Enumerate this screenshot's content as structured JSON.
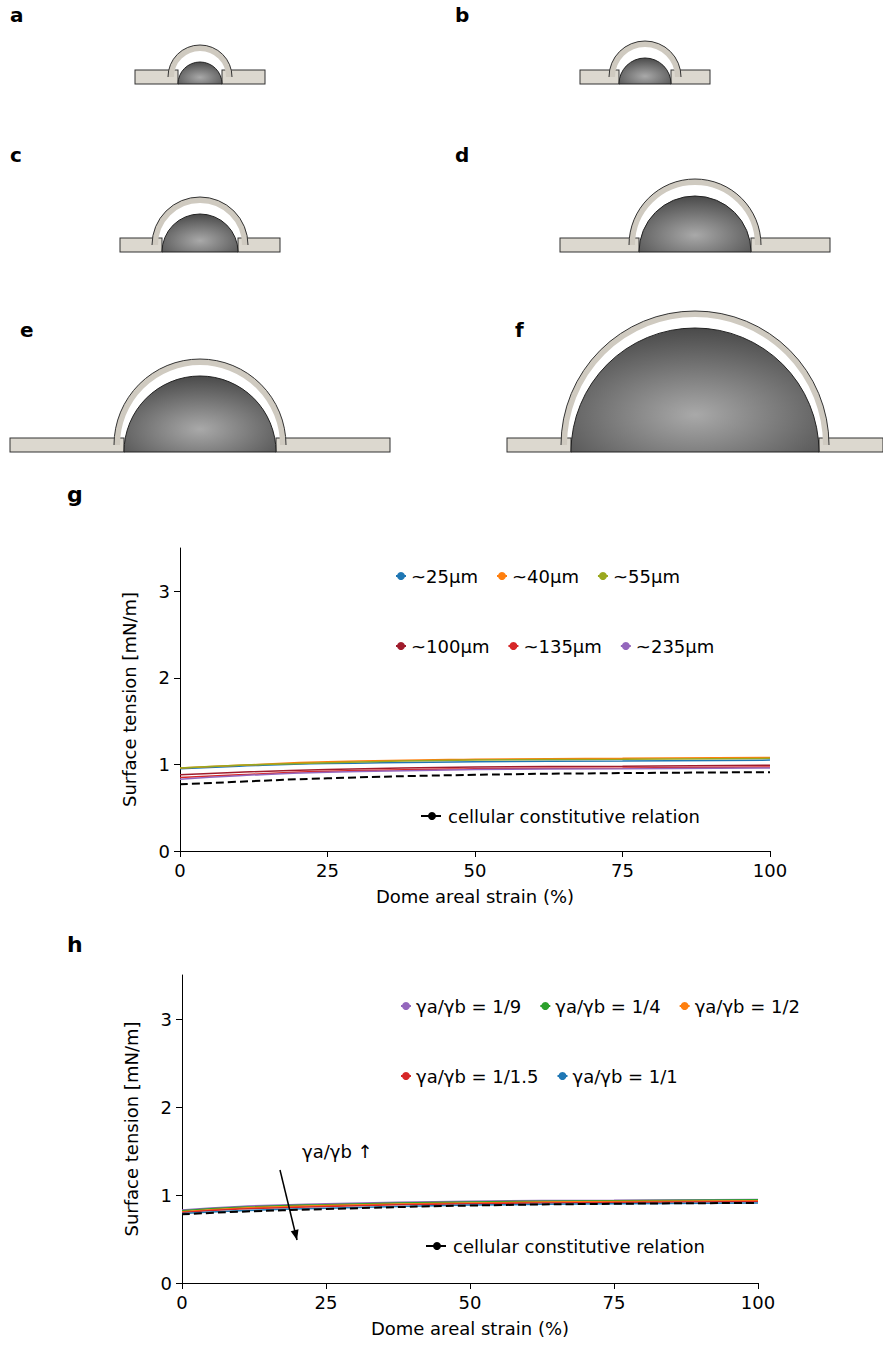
{
  "panels": [
    "a",
    "b",
    "c",
    "d",
    "e",
    "f"
  ],
  "chart_data": [
    {
      "type": "line",
      "title": "g",
      "x_label": "Dome areal strain (%)",
      "y_label": "Surface tension [mN/m]",
      "x": [
        0,
        10,
        25,
        50,
        75,
        100
      ],
      "xlim": [
        0,
        100
      ],
      "xticks": [
        0,
        25,
        50,
        75,
        100
      ],
      "ylim": [
        0,
        3.5
      ],
      "yticks": [
        0,
        1,
        2,
        3
      ],
      "grid": false,
      "legend": "upper right",
      "series": [
        {
          "name": "~25µm",
          "color": "#1f77b4",
          "values": [
            0.95,
            0.98,
            1.01,
            1.03,
            1.04,
            1.05
          ]
        },
        {
          "name": "~40µm",
          "color": "#ff7f0e",
          "values": [
            0.96,
            0.99,
            1.03,
            1.06,
            1.07,
            1.08
          ]
        },
        {
          "name": "~55µm",
          "color": "#9aa81e",
          "values": [
            0.96,
            0.99,
            1.02,
            1.05,
            1.06,
            1.07
          ]
        },
        {
          "name": "~100µm",
          "color": "#a01c2c",
          "values": [
            0.88,
            0.91,
            0.94,
            0.97,
            0.98,
            0.99
          ]
        },
        {
          "name": "~135µm",
          "color": "#d62728",
          "values": [
            0.85,
            0.88,
            0.92,
            0.95,
            0.96,
            0.97
          ]
        },
        {
          "name": "~235µm",
          "color": "#9467bd",
          "values": [
            0.83,
            0.87,
            0.91,
            0.94,
            0.95,
            0.96
          ]
        },
        {
          "name": "cellular constitutive relation",
          "color": "#000000",
          "line_style": "dashed",
          "values": [
            0.77,
            0.8,
            0.84,
            0.88,
            0.9,
            0.91
          ]
        }
      ]
    },
    {
      "type": "line",
      "title": "h",
      "x_label": "Dome areal strain (%)",
      "y_label": "Surface tension [mN/m]",
      "annotations": [
        "γa/γb ↑"
      ],
      "x": [
        0,
        10,
        25,
        50,
        75,
        100
      ],
      "xlim": [
        0,
        100
      ],
      "xticks": [
        0,
        25,
        50,
        75,
        100
      ],
      "ylim": [
        0,
        3.5
      ],
      "yticks": [
        0,
        1,
        2,
        3
      ],
      "grid": false,
      "legend": "upper right",
      "series": [
        {
          "name": "γa/γb = 1/9",
          "color": "#9467bd",
          "values": [
            0.83,
            0.87,
            0.9,
            0.93,
            0.94,
            0.95
          ]
        },
        {
          "name": "γa/γb = 1/4",
          "color": "#2ca02c",
          "values": [
            0.82,
            0.86,
            0.89,
            0.92,
            0.935,
            0.945
          ]
        },
        {
          "name": "γa/γb = 1/2",
          "color": "#ff7f0e",
          "values": [
            0.81,
            0.85,
            0.88,
            0.91,
            0.925,
            0.935
          ]
        },
        {
          "name": "γa/γb = 1/1.5",
          "color": "#d62728",
          "values": [
            0.8,
            0.84,
            0.87,
            0.9,
            0.915,
            0.925
          ]
        },
        {
          "name": "γa/γb = 1/1",
          "color": "#1f77b4",
          "values": [
            0.79,
            0.82,
            0.85,
            0.885,
            0.9,
            0.91
          ]
        },
        {
          "name": "cellular constitutive relation",
          "color": "#000000",
          "line_style": "dashed",
          "values": [
            0.78,
            0.81,
            0.84,
            0.88,
            0.9,
            0.91
          ]
        }
      ]
    }
  ]
}
